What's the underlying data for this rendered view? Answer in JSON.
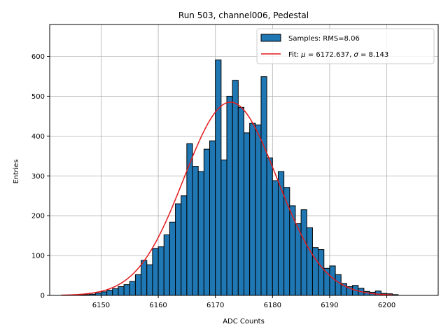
{
  "chart_data": {
    "type": "bar",
    "title": "Run 503, channel006, Pedestal",
    "xlabel": "ADC Counts",
    "ylabel": "Entries",
    "xlim": [
      6141,
      6209
    ],
    "ylim": [
      0,
      680
    ],
    "xticks": [
      6150,
      6160,
      6170,
      6180,
      6190,
      6200
    ],
    "yticks": [
      0,
      100,
      200,
      300,
      400,
      500,
      600
    ],
    "grid": true,
    "legend_position": "top-right",
    "bin_width": 1,
    "histogram": {
      "name": "Samples: RMS=8.06",
      "color": "#1f77b4",
      "bins": [
        {
          "x": 6146,
          "y": 1
        },
        {
          "x": 6147,
          "y": 2
        },
        {
          "x": 6148,
          "y": 3
        },
        {
          "x": 6149,
          "y": 6
        },
        {
          "x": 6150,
          "y": 9
        },
        {
          "x": 6151,
          "y": 13
        },
        {
          "x": 6152,
          "y": 17
        },
        {
          "x": 6153,
          "y": 22
        },
        {
          "x": 6154,
          "y": 27
        },
        {
          "x": 6155,
          "y": 35
        },
        {
          "x": 6156,
          "y": 52
        },
        {
          "x": 6157,
          "y": 88
        },
        {
          "x": 6158,
          "y": 77
        },
        {
          "x": 6159,
          "y": 118
        },
        {
          "x": 6160,
          "y": 122
        },
        {
          "x": 6161,
          "y": 152
        },
        {
          "x": 6162,
          "y": 184
        },
        {
          "x": 6163,
          "y": 230
        },
        {
          "x": 6164,
          "y": 250
        },
        {
          "x": 6165,
          "y": 381
        },
        {
          "x": 6166,
          "y": 324
        },
        {
          "x": 6167,
          "y": 311
        },
        {
          "x": 6168,
          "y": 367
        },
        {
          "x": 6169,
          "y": 388
        },
        {
          "x": 6170,
          "y": 591
        },
        {
          "x": 6171,
          "y": 340
        },
        {
          "x": 6172,
          "y": 500
        },
        {
          "x": 6173,
          "y": 540
        },
        {
          "x": 6174,
          "y": 472
        },
        {
          "x": 6175,
          "y": 408
        },
        {
          "x": 6176,
          "y": 432
        },
        {
          "x": 6177,
          "y": 428
        },
        {
          "x": 6178,
          "y": 549
        },
        {
          "x": 6179,
          "y": 345
        },
        {
          "x": 6180,
          "y": 288
        },
        {
          "x": 6181,
          "y": 311
        },
        {
          "x": 6182,
          "y": 271
        },
        {
          "x": 6183,
          "y": 225
        },
        {
          "x": 6184,
          "y": 180
        },
        {
          "x": 6185,
          "y": 215
        },
        {
          "x": 6186,
          "y": 170
        },
        {
          "x": 6187,
          "y": 120
        },
        {
          "x": 6188,
          "y": 115
        },
        {
          "x": 6189,
          "y": 68
        },
        {
          "x": 6190,
          "y": 74
        },
        {
          "x": 6191,
          "y": 52
        },
        {
          "x": 6192,
          "y": 30
        },
        {
          "x": 6193,
          "y": 22
        },
        {
          "x": 6194,
          "y": 25
        },
        {
          "x": 6195,
          "y": 18
        },
        {
          "x": 6196,
          "y": 10
        },
        {
          "x": 6197,
          "y": 8
        },
        {
          "x": 6198,
          "y": 11
        },
        {
          "x": 6199,
          "y": 5
        },
        {
          "x": 6200,
          "y": 4
        },
        {
          "x": 6201,
          "y": 2
        }
      ]
    },
    "fit": {
      "name": "Fit: μ = 6172.637, σ = 8.143",
      "type": "line",
      "color": "#e31a1c",
      "mu": 6172.637,
      "sigma": 8.143,
      "amplitude": 485,
      "x_range": [
        6143,
        6201
      ]
    }
  },
  "legend": {
    "hist_prefix": "Samples: RMS=8.06",
    "fit_prefix": "Fit: ",
    "fit_mu_symbol": "μ",
    "fit_mu_value": " = 6172.637, ",
    "fit_sigma_symbol": "σ",
    "fit_sigma_value": " = 8.143"
  }
}
